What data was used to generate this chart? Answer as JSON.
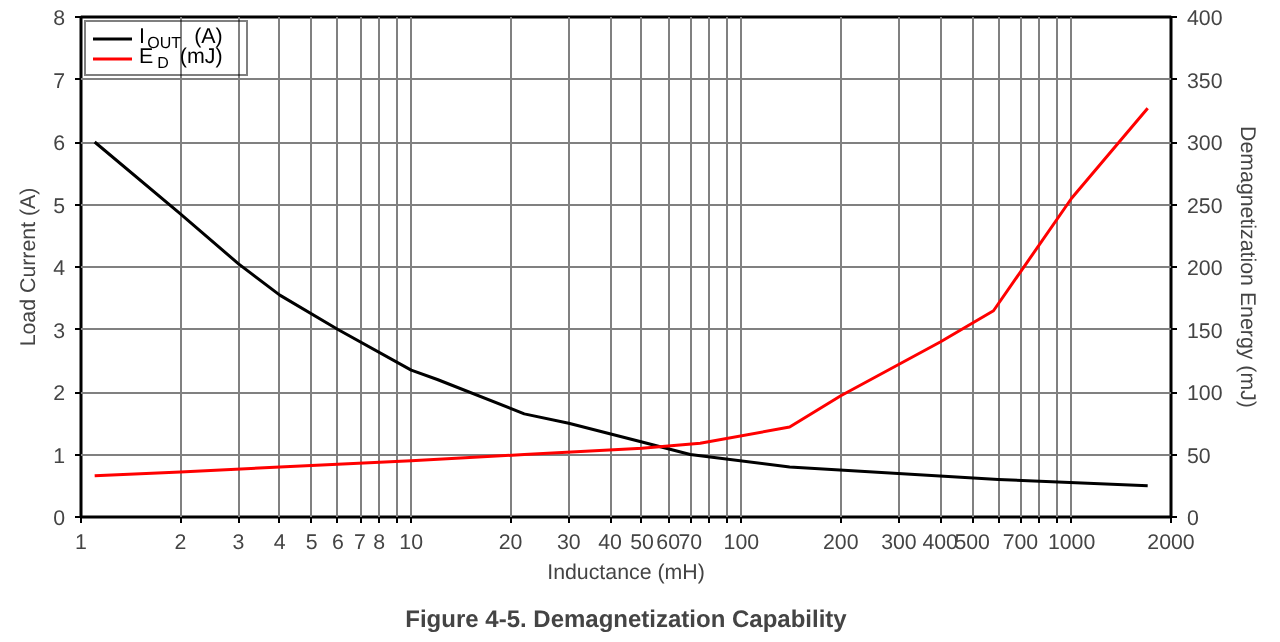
{
  "chart_data": {
    "type": "line",
    "title": "Figure 4-5. Demagnetization Capability",
    "xlabel": "Inductance (mH)",
    "ylabel": "Load Current (A)",
    "y2label": "Demagnetization Energy (mJ)",
    "log": "x",
    "grid": true,
    "legend": "top left",
    "line_style": "solid",
    "marker": "none",
    "xlim": [
      1,
      2000
    ],
    "xticks": [
      1,
      2,
      3,
      4,
      5,
      6,
      7,
      8,
      {
        "value": 9,
        "label": null
      },
      10,
      20,
      30,
      40,
      50,
      60,
      70,
      {
        "value": 80,
        "label": null
      },
      {
        "value": 90,
        "label": null
      },
      100,
      200,
      300,
      400,
      500,
      {
        "value": 600,
        "label": null
      },
      700,
      {
        "value": 800,
        "label": null
      },
      {
        "value": 900,
        "label": null
      },
      1000,
      2000
    ],
    "ylim": [
      0,
      8
    ],
    "yticks": [
      0,
      1,
      2,
      3,
      4,
      5,
      6,
      7,
      8
    ],
    "y2lim": [
      0,
      400
    ],
    "y2ticks": [
      0,
      50,
      100,
      150,
      200,
      250,
      300,
      350,
      400
    ],
    "series": [
      {
        "name": "I$_{OUT}$ (A)",
        "color": "#000000",
        "x": [
          1.1,
          2,
          3,
          4,
          6,
          10,
          12,
          22,
          30,
          50,
          70,
          140,
          600,
          1700
        ],
        "values": [
          6,
          4.85,
          4.05,
          3.55,
          3.0,
          2.35,
          2.2,
          1.65,
          1.5,
          1.2,
          1.0,
          0.8,
          0.6,
          0.5
        ]
      },
      {
        "name": "E$_{D}$ (mJ)",
        "color": "#ff0000",
        "axis": "y2",
        "x": [
          1.1,
          2,
          4,
          10,
          22,
          50,
          75,
          140,
          200,
          400,
          580,
          1000,
          1700
        ],
        "values": [
          33,
          36,
          40,
          45,
          50,
          55,
          59,
          72,
          97,
          140,
          165,
          255,
          327
        ]
      }
    ]
  }
}
